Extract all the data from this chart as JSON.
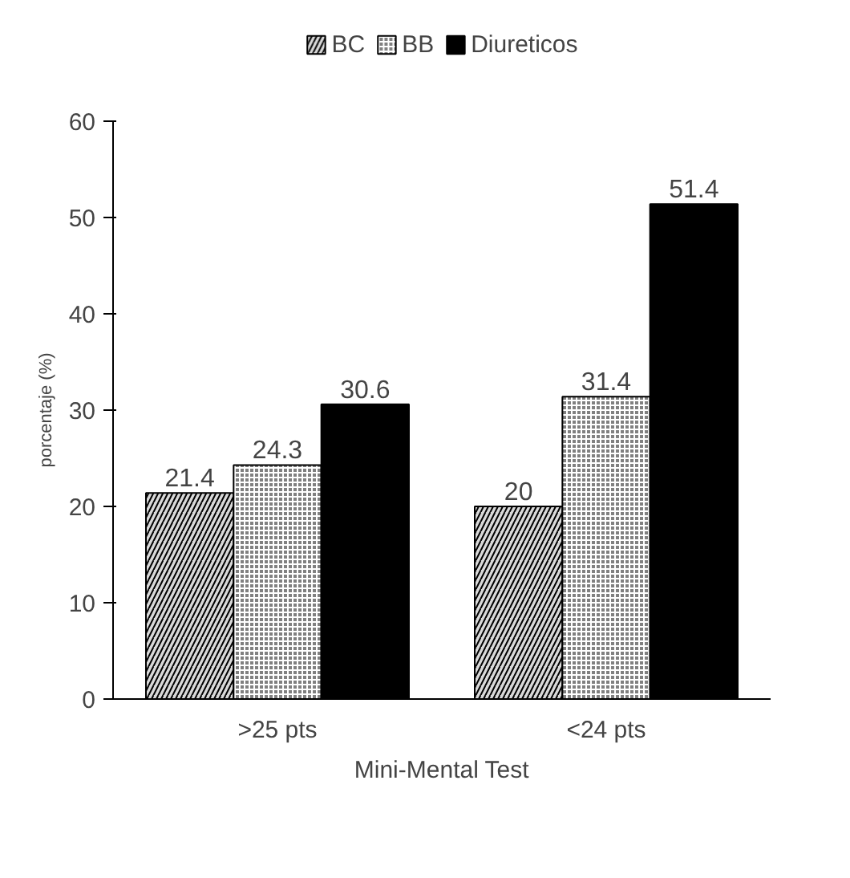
{
  "chart_data": {
    "type": "bar",
    "xlabel": "Mini-Mental Test",
    "ylabel": "porcentaje (%)",
    "categories": [
      ">25 pts",
      "<24 pts"
    ],
    "series": [
      {
        "name": "BC",
        "color": "#d9d9d9",
        "values": [
          21.4,
          20
        ]
      },
      {
        "name": "BB",
        "color": "#808080",
        "values": [
          24.3,
          31.4
        ]
      },
      {
        "name": "Diureticos",
        "color": "#000000",
        "values": [
          30.6,
          51.4
        ]
      }
    ],
    "ylim": [
      0,
      60
    ],
    "yticks": [
      0,
      10,
      20,
      30,
      40,
      50,
      60
    ],
    "grid": false,
    "legend": "top",
    "data_labels": true
  }
}
